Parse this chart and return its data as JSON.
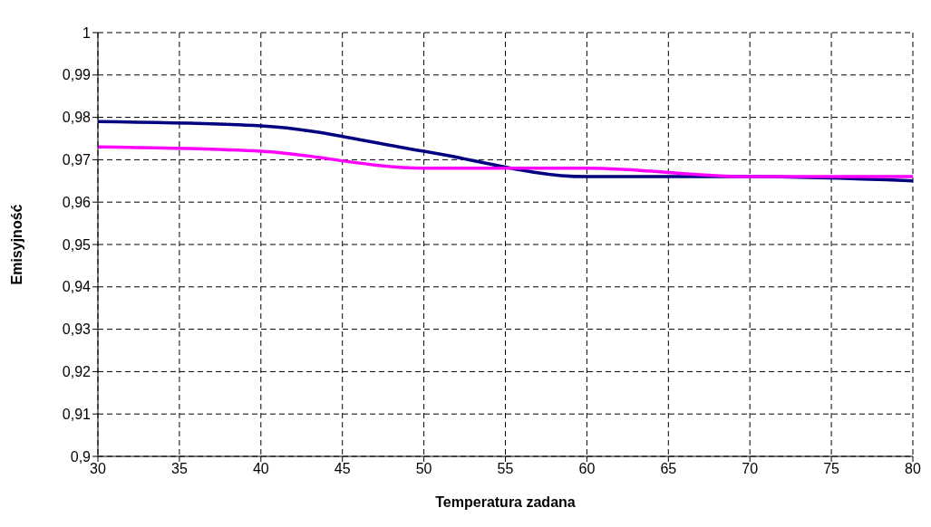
{
  "chart_data": {
    "type": "line",
    "xlabel": "Temperatura zadana",
    "ylabel": "Emisyjność",
    "x": [
      30,
      40,
      50,
      60,
      70,
      80
    ],
    "series": [
      {
        "color": "#000080",
        "values": [
          0.979,
          0.978,
          0.972,
          0.966,
          0.966,
          0.965
        ]
      },
      {
        "color": "#ff00ff",
        "values": [
          0.973,
          0.972,
          0.968,
          0.968,
          0.966,
          0.966
        ]
      }
    ],
    "xlim": [
      30,
      80
    ],
    "xticks": [
      30,
      35,
      40,
      45,
      50,
      55,
      60,
      65,
      70,
      75,
      80
    ],
    "ylim": [
      0.9,
      1
    ],
    "yticks": [
      {
        "value": 0.9,
        "label": "0,9"
      },
      {
        "value": 0.91,
        "label": "0,91"
      },
      {
        "value": 0.92,
        "label": "0,92"
      },
      {
        "value": 0.93,
        "label": "0,93"
      },
      {
        "value": 0.94,
        "label": "0,94"
      },
      {
        "value": 0.95,
        "label": "0,95"
      },
      {
        "value": 0.96,
        "label": "0,96"
      },
      {
        "value": 0.97,
        "label": "0,97"
      },
      {
        "value": 0.98,
        "label": "0,98"
      },
      {
        "value": 0.99,
        "label": "0,99"
      },
      {
        "value": 1,
        "label": "1"
      }
    ],
    "grid": true,
    "marker": "none",
    "line_style": "solid",
    "legend": false
  }
}
